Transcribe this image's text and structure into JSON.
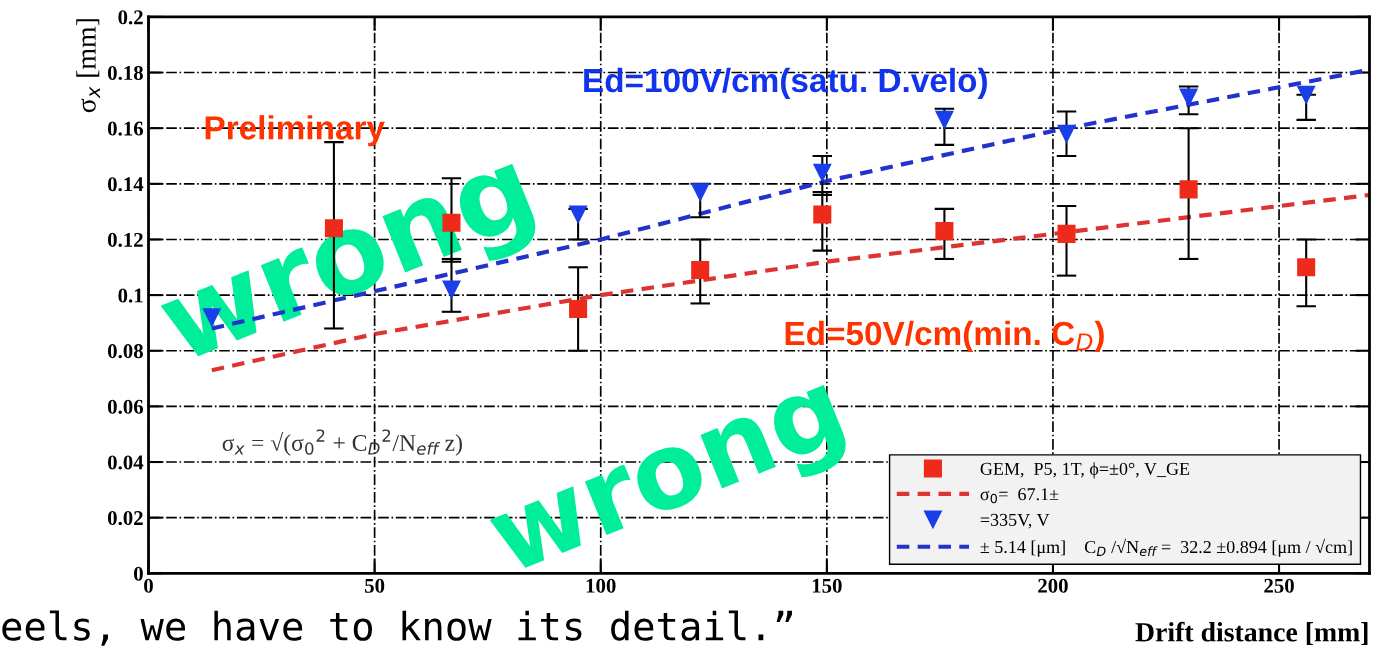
{
  "chart_data": {
    "type": "scatter",
    "xlabel": "Drift distance [mm]",
    "ylabel": "σ$_{x}$ [mm]",
    "xlim": [
      0,
      270
    ],
    "ylim": [
      0,
      0.2
    ],
    "xticks": [
      0,
      50,
      100,
      150,
      200,
      250
    ],
    "yticks": [
      0,
      0.02,
      0.04,
      0.06,
      0.08,
      {
        "value": 0.1,
        "label": "0.1"
      },
      0.12,
      0.14,
      0.16,
      0.18,
      {
        "value": 0.2,
        "label": "0.2"
      }
    ],
    "grid": true,
    "legend": "bottom right",
    "series": [
      {
        "name": "GEM,  P5, 1T, ϕ=±0°, V_GE",
        "marker": "square",
        "color": "#ee2a1a",
        "x": [
          41,
          67,
          95,
          122,
          149,
          176,
          203,
          230,
          256
        ],
        "values": [
          0.124,
          0.126,
          0.095,
          0.109,
          0.129,
          0.123,
          0.122,
          0.138,
          0.11
        ],
        "errors": [
          [
            0.088,
            0.155
          ],
          [
            0.112,
            0.142
          ],
          0.015,
          [
            0.097,
            0.12
          ],
          [
            0.116,
            0.137
          ],
          [
            0.113,
            0.131
          ],
          [
            0.107,
            0.132
          ],
          [
            0.113,
            0.16
          ],
          [
            0.096,
            0.12
          ]
        ]
      },
      {
        "name": "σ$_{0}$=  67.1±",
        "type": "line",
        "line_style": "dashed",
        "color": "#dd3333",
        "x": [
          14,
          50,
          100,
          150,
          200,
          270
        ],
        "values": [
          0.073,
          0.086,
          0.1,
          0.112,
          0.122,
          0.136
        ]
      },
      {
        "name": "=335V, V",
        "marker": "triangle",
        "color": "#1a3ee8",
        "x": [
          14,
          67,
          95,
          122,
          149,
          176,
          203,
          230,
          256
        ],
        "values": [
          0.092,
          0.102,
          0.129,
          0.137,
          0.144,
          0.163,
          0.158,
          0.171,
          0.172
        ],
        "errors": [
          null,
          [
            0.094,
            0.113
          ],
          [
            0.12,
            0.131
          ],
          [
            0.128,
            0.14
          ],
          [
            0.136,
            0.15
          ],
          [
            0.154,
            0.167
          ],
          [
            0.15,
            0.166
          ],
          [
            0.165,
            0.175
          ],
          [
            0.163,
            0.172
          ]
        ]
      },
      {
        "name": "± 5.14 [μm]    C$_{D}$ /√N$_{eff}$ =  32.2 ±0.894 [μm / √cm]",
        "type": "line",
        "line_style": "dashed",
        "color": "#2233cc",
        "x": [
          14,
          100,
          150,
          200,
          270
        ],
        "values": [
          0.088,
          0.12,
          0.141,
          0.159,
          0.181
        ]
      }
    ],
    "annotations": [
      "Preliminary",
      "Ed=100V/cm(satu. D.velo)",
      "Ed=50V/cm(min. C$_{D}$)",
      "σ$_{x}$ = √(σ$_{0}$$^{2}$ + C$_{D}$$^{2}$/N$_{eff}$ z)",
      "wrong",
      "wrong",
      "eels, we have to know its detail.”"
    ]
  }
}
